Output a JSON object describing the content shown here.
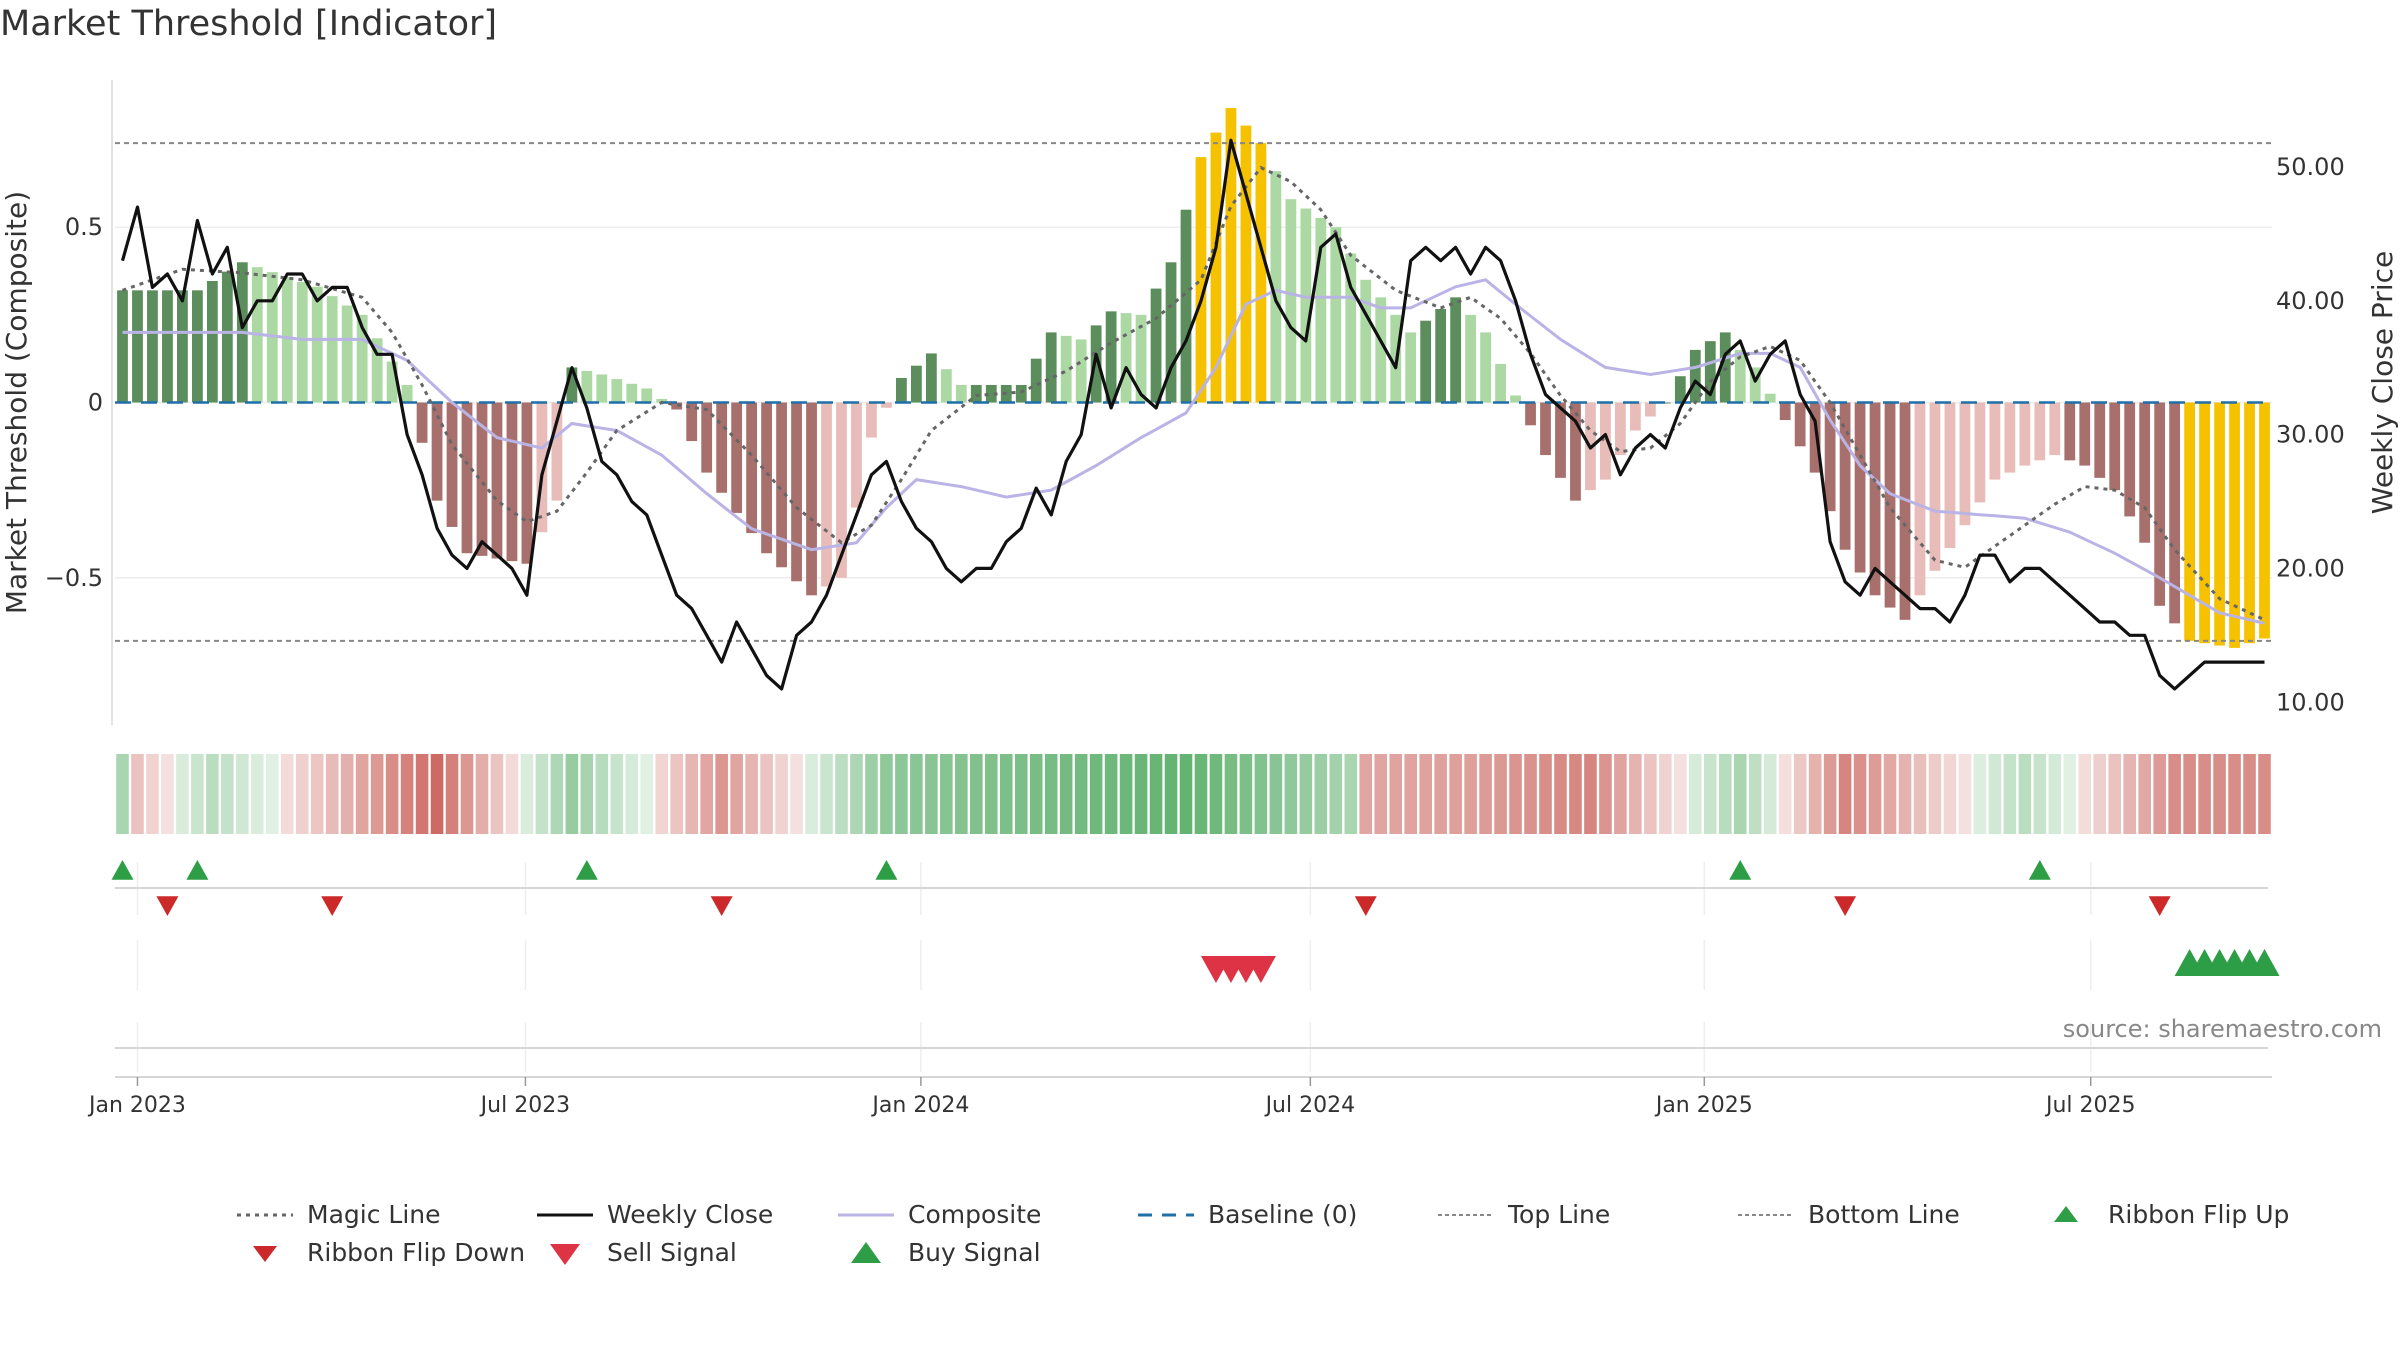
{
  "title": "Market Threshold [Indicator]",
  "source": "source: sharemaestro.com",
  "colors": {
    "magic": "#666666",
    "close": "#111111",
    "composite": "#b9b3e6",
    "baseline": "#1f6fa8",
    "threshold": "#888888",
    "flip_up": "#2e9e46",
    "flip_down": "#cc2a2a",
    "sell": "#dd3344",
    "buy": "#2e9e46",
    "extreme": "#f6c200"
  },
  "legend": [
    {
      "key": "magic",
      "label": "Magic Line"
    },
    {
      "key": "close",
      "label": "Weekly Close"
    },
    {
      "key": "composite",
      "label": "Composite"
    },
    {
      "key": "baseline",
      "label": "Baseline (0)"
    },
    {
      "key": "top",
      "label": "Top Line"
    },
    {
      "key": "bottom",
      "label": "Bottom Line"
    },
    {
      "key": "flip_up",
      "label": "Ribbon Flip Up"
    },
    {
      "key": "flip_down",
      "label": "Ribbon Flip Down"
    },
    {
      "key": "sell",
      "label": "Sell Signal"
    },
    {
      "key": "buy",
      "label": "Buy Signal"
    }
  ],
  "chart_data": {
    "type": "bar",
    "title": "Market Threshold [Indicator]",
    "ylabel": "Market Threshold (Composite)",
    "y2label": "Weekly Close Price",
    "ylim": [
      -0.92,
      0.92
    ],
    "y2lim": [
      8.3,
      56.5
    ],
    "yticks": [
      {
        "v": 0.5,
        "label": "0.5"
      },
      {
        "v": 0,
        "label": "0"
      },
      {
        "v": -0.5,
        "label": "−0.5"
      }
    ],
    "y2ticks": [
      {
        "v": 50,
        "label": "50.00"
      },
      {
        "v": 40,
        "label": "40.00"
      },
      {
        "v": 30,
        "label": "30.00"
      },
      {
        "v": 20,
        "label": "20.00"
      },
      {
        "v": 10,
        "label": "10.00"
      }
    ],
    "x_start": "2022-12-26",
    "week_count": 144,
    "x_ticks": [
      {
        "week": 1.0,
        "label": "Jan 2023"
      },
      {
        "week": 26.9,
        "label": "Jul 2023"
      },
      {
        "week": 53.3,
        "label": "Jan 2024"
      },
      {
        "week": 79.3,
        "label": "Jul 2024"
      },
      {
        "week": 105.6,
        "label": "Jan 2025"
      },
      {
        "week": 131.4,
        "label": "Jul 2025"
      }
    ],
    "top_line": 0.74,
    "bottom_line": -0.68,
    "baseline": 0,
    "bars_anchor": [
      [
        0,
        0.32
      ],
      [
        5,
        0.32
      ],
      [
        8,
        0.4
      ],
      [
        13,
        0.33
      ],
      [
        16,
        0.25
      ],
      [
        19,
        0.05
      ],
      [
        21,
        -0.28
      ],
      [
        23,
        -0.43
      ],
      [
        27,
        -0.46
      ],
      [
        29,
        -0.28
      ],
      [
        30,
        0.1
      ],
      [
        32,
        0.08
      ],
      [
        35,
        0.04
      ],
      [
        37,
        -0.02
      ],
      [
        39,
        -0.2
      ],
      [
        43,
        -0.43
      ],
      [
        46,
        -0.55
      ],
      [
        48,
        -0.5
      ],
      [
        50,
        -0.1
      ],
      [
        52,
        0.07
      ],
      [
        54,
        0.14
      ],
      [
        56,
        0.05
      ],
      [
        60,
        0.05
      ],
      [
        62,
        0.2
      ],
      [
        64,
        0.18
      ],
      [
        66,
        0.26
      ],
      [
        68,
        0.25
      ],
      [
        70,
        0.4
      ],
      [
        72,
        0.7
      ],
      [
        74,
        0.84
      ],
      [
        76,
        0.74
      ],
      [
        78,
        0.58
      ],
      [
        81,
        0.5
      ],
      [
        83,
        0.35
      ],
      [
        86,
        0.2
      ],
      [
        89,
        0.3
      ],
      [
        91,
        0.2
      ],
      [
        93,
        0.02
      ],
      [
        95,
        -0.15
      ],
      [
        97,
        -0.28
      ],
      [
        99,
        -0.22
      ],
      [
        101,
        -0.08
      ],
      [
        103,
        0.0
      ],
      [
        105,
        0.15
      ],
      [
        107,
        0.2
      ],
      [
        109,
        0.1
      ],
      [
        111,
        -0.05
      ],
      [
        113,
        -0.2
      ],
      [
        115,
        -0.42
      ],
      [
        117,
        -0.55
      ],
      [
        119,
        -0.62
      ],
      [
        121,
        -0.48
      ],
      [
        123,
        -0.35
      ],
      [
        125,
        -0.22
      ],
      [
        127,
        -0.18
      ],
      [
        129,
        -0.15
      ],
      [
        131,
        -0.18
      ],
      [
        133,
        -0.25
      ],
      [
        135,
        -0.4
      ],
      [
        136,
        -0.58
      ],
      [
        138,
        -0.68
      ],
      [
        141,
        -0.7
      ],
      [
        144,
        -0.66
      ]
    ],
    "close_anchor": [
      [
        0,
        43
      ],
      [
        1,
        47
      ],
      [
        2,
        41
      ],
      [
        3,
        42
      ],
      [
        4,
        40
      ],
      [
        5,
        46
      ],
      [
        6,
        42
      ],
      [
        7,
        44
      ],
      [
        8,
        38
      ],
      [
        9,
        40
      ],
      [
        10,
        40
      ],
      [
        11,
        42
      ],
      [
        12,
        42
      ],
      [
        13,
        40
      ],
      [
        14,
        41
      ],
      [
        15,
        41
      ],
      [
        16,
        38
      ],
      [
        17,
        36
      ],
      [
        18,
        36
      ],
      [
        19,
        30
      ],
      [
        20,
        27
      ],
      [
        21,
        23
      ],
      [
        22,
        21
      ],
      [
        23,
        20
      ],
      [
        24,
        22
      ],
      [
        25,
        21
      ],
      [
        26,
        20
      ],
      [
        27,
        18
      ],
      [
        28,
        27
      ],
      [
        29,
        31
      ],
      [
        30,
        35
      ],
      [
        31,
        32
      ],
      [
        32,
        28
      ],
      [
        33,
        27
      ],
      [
        34,
        25
      ],
      [
        35,
        24
      ],
      [
        36,
        21
      ],
      [
        37,
        18
      ],
      [
        38,
        17
      ],
      [
        39,
        15
      ],
      [
        40,
        13
      ],
      [
        41,
        16
      ],
      [
        42,
        14
      ],
      [
        43,
        12
      ],
      [
        44,
        11
      ],
      [
        45,
        15
      ],
      [
        46,
        16
      ],
      [
        47,
        18
      ],
      [
        48,
        21
      ],
      [
        49,
        24
      ],
      [
        50,
        27
      ],
      [
        51,
        28
      ],
      [
        52,
        25
      ],
      [
        53,
        23
      ],
      [
        54,
        22
      ],
      [
        55,
        20
      ],
      [
        56,
        19
      ],
      [
        57,
        20
      ],
      [
        58,
        20
      ],
      [
        59,
        22
      ],
      [
        60,
        23
      ],
      [
        61,
        26
      ],
      [
        62,
        24
      ],
      [
        63,
        28
      ],
      [
        64,
        30
      ],
      [
        65,
        36
      ],
      [
        66,
        32
      ],
      [
        67,
        35
      ],
      [
        68,
        33
      ],
      [
        69,
        32
      ],
      [
        70,
        35
      ],
      [
        71,
        37
      ],
      [
        72,
        40
      ],
      [
        73,
        44
      ],
      [
        74,
        52
      ],
      [
        75,
        48
      ],
      [
        76,
        44
      ],
      [
        77,
        40
      ],
      [
        78,
        38
      ],
      [
        79,
        37
      ],
      [
        80,
        44
      ],
      [
        81,
        45
      ],
      [
        82,
        41
      ],
      [
        83,
        39
      ],
      [
        84,
        37
      ],
      [
        85,
        35
      ],
      [
        86,
        43
      ],
      [
        87,
        44
      ],
      [
        88,
        43
      ],
      [
        89,
        44
      ],
      [
        90,
        42
      ],
      [
        91,
        44
      ],
      [
        92,
        43
      ],
      [
        93,
        40
      ],
      [
        94,
        36
      ],
      [
        95,
        33
      ],
      [
        96,
        32
      ],
      [
        97,
        31
      ],
      [
        98,
        29
      ],
      [
        99,
        30
      ],
      [
        100,
        27
      ],
      [
        101,
        29
      ],
      [
        102,
        30
      ],
      [
        103,
        29
      ],
      [
        104,
        32
      ],
      [
        105,
        34
      ],
      [
        106,
        33
      ],
      [
        107,
        36
      ],
      [
        108,
        37
      ],
      [
        109,
        34
      ],
      [
        110,
        36
      ],
      [
        111,
        37
      ],
      [
        112,
        33
      ],
      [
        113,
        31
      ],
      [
        114,
        22
      ],
      [
        115,
        19
      ],
      [
        116,
        18
      ],
      [
        117,
        20
      ],
      [
        118,
        19
      ],
      [
        119,
        18
      ],
      [
        120,
        17
      ],
      [
        121,
        17
      ],
      [
        122,
        16
      ],
      [
        123,
        18
      ],
      [
        124,
        21
      ],
      [
        125,
        21
      ],
      [
        126,
        19
      ],
      [
        127,
        20
      ],
      [
        128,
        20
      ],
      [
        129,
        19
      ],
      [
        130,
        18
      ],
      [
        131,
        17
      ],
      [
        132,
        16
      ],
      [
        133,
        16
      ],
      [
        134,
        15
      ],
      [
        135,
        15
      ],
      [
        136,
        12
      ],
      [
        137,
        11
      ],
      [
        138,
        12
      ],
      [
        139,
        13
      ],
      [
        140,
        13
      ],
      [
        141,
        13
      ],
      [
        142,
        13
      ],
      [
        143,
        13
      ]
    ],
    "composite_anchor": [
      [
        0,
        0.2
      ],
      [
        8,
        0.2
      ],
      [
        12,
        0.18
      ],
      [
        16,
        0.18
      ],
      [
        19,
        0.12
      ],
      [
        22,
        0.0
      ],
      [
        25,
        -0.1
      ],
      [
        28,
        -0.13
      ],
      [
        30,
        -0.06
      ],
      [
        33,
        -0.08
      ],
      [
        36,
        -0.15
      ],
      [
        39,
        -0.26
      ],
      [
        42,
        -0.36
      ],
      [
        46,
        -0.42
      ],
      [
        49,
        -0.4
      ],
      [
        51,
        -0.3
      ],
      [
        53,
        -0.22
      ],
      [
        56,
        -0.24
      ],
      [
        59,
        -0.27
      ],
      [
        62,
        -0.25
      ],
      [
        65,
        -0.18
      ],
      [
        68,
        -0.1
      ],
      [
        71,
        -0.03
      ],
      [
        73,
        0.1
      ],
      [
        75,
        0.28
      ],
      [
        77,
        0.32
      ],
      [
        79,
        0.3
      ],
      [
        82,
        0.3
      ],
      [
        84,
        0.27
      ],
      [
        86,
        0.27
      ],
      [
        89,
        0.33
      ],
      [
        91,
        0.35
      ],
      [
        93,
        0.28
      ],
      [
        96,
        0.18
      ],
      [
        99,
        0.1
      ],
      [
        102,
        0.08
      ],
      [
        105,
        0.1
      ],
      [
        108,
        0.14
      ],
      [
        110,
        0.14
      ],
      [
        112,
        0.1
      ],
      [
        114,
        -0.05
      ],
      [
        116,
        -0.18
      ],
      [
        118,
        -0.26
      ],
      [
        121,
        -0.31
      ],
      [
        124,
        -0.32
      ],
      [
        127,
        -0.33
      ],
      [
        130,
        -0.37
      ],
      [
        133,
        -0.43
      ],
      [
        136,
        -0.5
      ],
      [
        140,
        -0.6
      ],
      [
        143,
        -0.63
      ]
    ],
    "magic_anchor": [
      [
        0,
        0.32
      ],
      [
        4,
        0.38
      ],
      [
        8,
        0.37
      ],
      [
        12,
        0.35
      ],
      [
        16,
        0.3
      ],
      [
        18,
        0.2
      ],
      [
        20,
        0.05
      ],
      [
        22,
        -0.12
      ],
      [
        25,
        -0.28
      ],
      [
        27,
        -0.34
      ],
      [
        29,
        -0.31
      ],
      [
        31,
        -0.2
      ],
      [
        33,
        -0.08
      ],
      [
        36,
        0.0
      ],
      [
        39,
        -0.02
      ],
      [
        42,
        -0.15
      ],
      [
        45,
        -0.3
      ],
      [
        48,
        -0.4
      ],
      [
        50,
        -0.35
      ],
      [
        52,
        -0.22
      ],
      [
        54,
        -0.08
      ],
      [
        57,
        0.02
      ],
      [
        60,
        0.03
      ],
      [
        63,
        0.09
      ],
      [
        66,
        0.17
      ],
      [
        69,
        0.24
      ],
      [
        72,
        0.35
      ],
      [
        74,
        0.56
      ],
      [
        76,
        0.67
      ],
      [
        78,
        0.63
      ],
      [
        80,
        0.55
      ],
      [
        82,
        0.42
      ],
      [
        85,
        0.32
      ],
      [
        88,
        0.27
      ],
      [
        90,
        0.3
      ],
      [
        92,
        0.24
      ],
      [
        94,
        0.14
      ],
      [
        96,
        0.02
      ],
      [
        98,
        -0.08
      ],
      [
        100,
        -0.14
      ],
      [
        102,
        -0.13
      ],
      [
        104,
        -0.06
      ],
      [
        106,
        0.06
      ],
      [
        108,
        0.13
      ],
      [
        110,
        0.16
      ],
      [
        112,
        0.12
      ],
      [
        114,
        0.0
      ],
      [
        116,
        -0.15
      ],
      [
        118,
        -0.3
      ],
      [
        121,
        -0.45
      ],
      [
        123,
        -0.47
      ],
      [
        126,
        -0.38
      ],
      [
        129,
        -0.29
      ],
      [
        131,
        -0.24
      ],
      [
        133,
        -0.25
      ],
      [
        135,
        -0.3
      ],
      [
        137,
        -0.42
      ],
      [
        140,
        -0.56
      ],
      [
        143,
        -0.62
      ]
    ],
    "extreme_weeks": [
      72,
      73,
      74,
      75,
      76,
      138,
      139,
      140,
      141,
      142,
      143
    ],
    "ribbon_anchor": [
      [
        0,
        0.35
      ],
      [
        1,
        -0.2
      ],
      [
        6,
        0.25
      ],
      [
        15,
        -0.3
      ],
      [
        21,
        -0.7
      ],
      [
        30,
        0.45
      ],
      [
        40,
        -0.45
      ],
      [
        51,
        0.5
      ],
      [
        71,
        0.75
      ],
      [
        82,
        0.35
      ],
      [
        82,
        -0.35
      ],
      [
        90,
        -0.4
      ],
      [
        98,
        -0.55
      ],
      [
        108,
        0.35
      ],
      [
        115,
        -0.55
      ],
      [
        127,
        0.25
      ],
      [
        137,
        -0.5
      ]
    ],
    "flip_up_weeks": [
      0,
      5,
      31,
      51,
      108,
      128
    ],
    "flip_down_weeks": [
      3,
      14,
      40,
      83,
      115,
      136
    ],
    "sell_weeks": [
      73,
      74,
      75,
      76
    ],
    "buy_weeks": [
      138,
      139,
      140,
      141,
      142,
      143
    ]
  }
}
